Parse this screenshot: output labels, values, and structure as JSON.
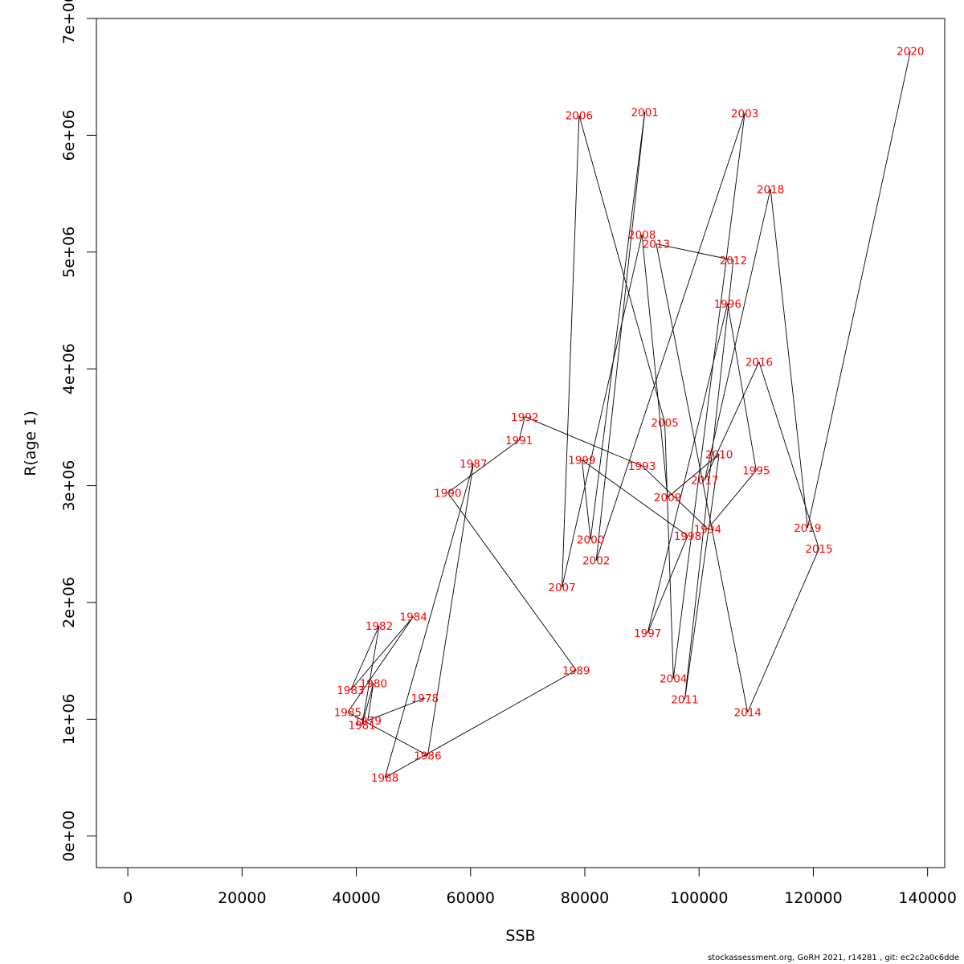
{
  "chart_data": {
    "type": "line",
    "title": "",
    "xlabel": "SSB",
    "ylabel": "R(age 1)",
    "xlim": [
      -5500,
      143000
    ],
    "ylim": [
      -270000,
      7000000
    ],
    "x_ticks": [
      0,
      20000,
      40000,
      60000,
      80000,
      100000,
      120000,
      140000
    ],
    "x_tick_labels": [
      "0",
      "20000",
      "40000",
      "60000",
      "80000",
      "100000",
      "120000",
      "140000"
    ],
    "y_ticks": [
      0,
      1000000,
      2000000,
      3000000,
      4000000,
      5000000,
      6000000,
      7000000
    ],
    "y_tick_labels": [
      "0e+00",
      "1e+06",
      "2e+06",
      "3e+06",
      "4e+06",
      "5e+06",
      "6e+06",
      "7e+06"
    ],
    "grid": false,
    "line_color": "#000000",
    "label_color": "#ff0000",
    "series": [
      {
        "points": [
          {
            "year": "1978",
            "x": 52000,
            "y": 1180000
          },
          {
            "year": "1979",
            "x": 42000,
            "y": 990000
          },
          {
            "year": "1980",
            "x": 43000,
            "y": 1310000
          },
          {
            "year": "1981",
            "x": 41000,
            "y": 950000
          },
          {
            "year": "1982",
            "x": 44000,
            "y": 1800000
          },
          {
            "year": "1983",
            "x": 39000,
            "y": 1250000
          },
          {
            "year": "1984",
            "x": 50000,
            "y": 1880000
          },
          {
            "year": "1985",
            "x": 38500,
            "y": 1060000
          },
          {
            "year": "1986",
            "x": 52500,
            "y": 690000
          },
          {
            "year": "1987",
            "x": 60500,
            "y": 3190000
          },
          {
            "year": "1988",
            "x": 45000,
            "y": 500000
          },
          {
            "year": "1989",
            "x": 78500,
            "y": 1420000
          },
          {
            "year": "1990",
            "x": 56000,
            "y": 2940000
          },
          {
            "year": "1991",
            "x": 68500,
            "y": 3390000
          },
          {
            "year": "1992",
            "x": 69500,
            "y": 3590000
          },
          {
            "year": "1993",
            "x": 90000,
            "y": 3170000
          },
          {
            "year": "1994",
            "x": 101500,
            "y": 2630000
          },
          {
            "year": "1995",
            "x": 110000,
            "y": 3130000
          },
          {
            "year": "1996",
            "x": 105000,
            "y": 4560000
          },
          {
            "year": "1997",
            "x": 91000,
            "y": 1740000
          },
          {
            "year": "1998",
            "x": 98000,
            "y": 2570000
          },
          {
            "year": "1999",
            "x": 79500,
            "y": 3220000
          },
          {
            "year": "2000",
            "x": 81000,
            "y": 2540000
          },
          {
            "year": "2001",
            "x": 90500,
            "y": 6200000
          },
          {
            "year": "2002",
            "x": 82000,
            "y": 2360000
          },
          {
            "year": "2003",
            "x": 108000,
            "y": 6190000
          },
          {
            "year": "2004",
            "x": 95500,
            "y": 1350000
          },
          {
            "year": "2005",
            "x": 94000,
            "y": 3540000
          },
          {
            "year": "2006",
            "x": 79000,
            "y": 6170000
          },
          {
            "year": "2007",
            "x": 76000,
            "y": 2130000
          },
          {
            "year": "2008",
            "x": 90000,
            "y": 5150000
          },
          {
            "year": "2009",
            "x": 94500,
            "y": 2900000
          },
          {
            "year": "2010",
            "x": 103500,
            "y": 3270000
          },
          {
            "year": "2011",
            "x": 97500,
            "y": 1170000
          },
          {
            "year": "2012",
            "x": 106000,
            "y": 4930000
          },
          {
            "year": "2013",
            "x": 92500,
            "y": 5070000
          },
          {
            "year": "2014",
            "x": 108500,
            "y": 1060000
          },
          {
            "year": "2015",
            "x": 121000,
            "y": 2460000
          },
          {
            "year": "2016",
            "x": 110500,
            "y": 4060000
          },
          {
            "year": "2017",
            "x": 101000,
            "y": 3050000
          },
          {
            "year": "2018",
            "x": 112500,
            "y": 5540000
          },
          {
            "year": "2019",
            "x": 119000,
            "y": 2640000
          },
          {
            "year": "2020",
            "x": 137000,
            "y": 6720000
          }
        ]
      }
    ]
  },
  "footer_text": "stockassessment.org, GoRH  2021, r14281 , git: ec2c2a0c6dde"
}
